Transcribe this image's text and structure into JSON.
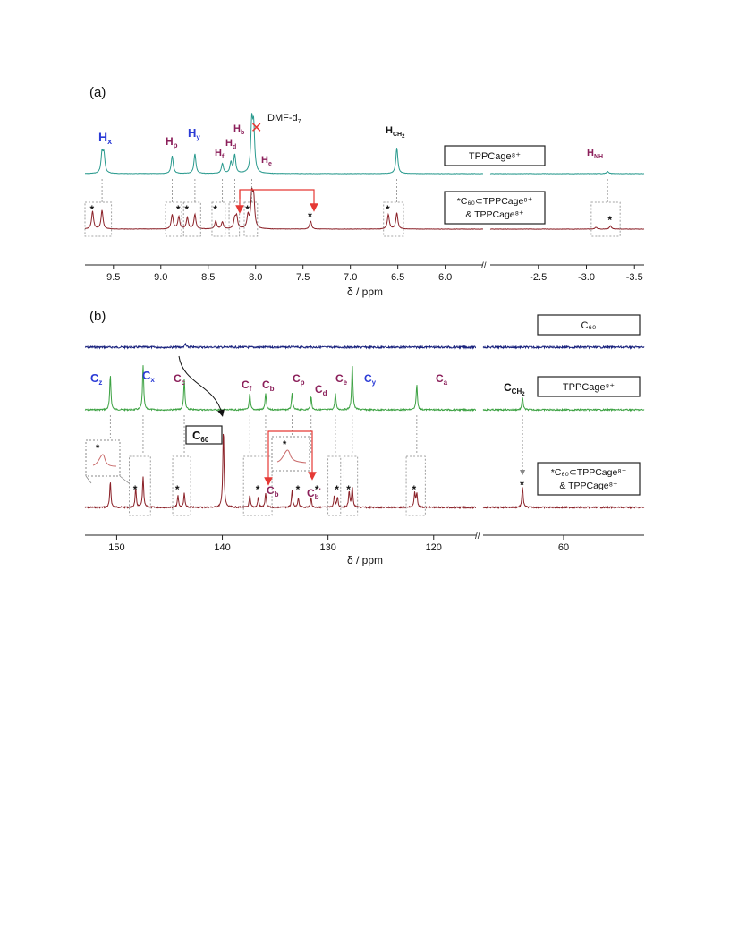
{
  "chart_data": [
    {
      "panel_label": "(a)",
      "type": "line",
      "xlabel": "δ / ppm",
      "x_axis_segments": [
        {
          "range": [
            9.8,
            5.6
          ],
          "ticks": [
            "9.5",
            "9.0",
            "8.5",
            "8.0",
            "7.5",
            "7.0",
            "6.5",
            "6.0"
          ],
          "tick_values": [
            9.5,
            9.0,
            8.5,
            8.0,
            7.5,
            7.0,
            6.5,
            6.0
          ]
        },
        {
          "range": [
            -2.0,
            -3.6
          ],
          "ticks": [
            "-2.5",
            "-3.0",
            "-3.5"
          ],
          "tick_values": [
            -2.5,
            -3.0,
            -3.5
          ]
        }
      ],
      "series": [
        {
          "legend": "TPPCage⁸⁺",
          "color": "#2a9a8e",
          "peaks": [
            {
              "x": 9.62,
              "h": 0.55
            },
            {
              "x": 9.6,
              "h": 0.5
            },
            {
              "x": 8.88,
              "h": 0.5
            },
            {
              "x": 8.64,
              "h": 0.55
            },
            {
              "x": 8.35,
              "h": 0.28
            },
            {
              "x": 8.26,
              "h": 0.3
            },
            {
              "x": 8.22,
              "h": 0.52
            },
            {
              "x": 8.04,
              "h": 1.35
            },
            {
              "x": 8.02,
              "h": 1.2
            },
            {
              "x": 6.51,
              "h": 0.72
            },
            {
              "x": -3.22,
              "h": 0.06
            }
          ]
        },
        {
          "legend_lines": [
            "*C₆₀⊂TPPCage⁸⁺",
            "& TPPCage⁸⁺"
          ],
          "color": "#8b2128",
          "peaks": [
            {
              "x": 9.72,
              "h": 0.55
            },
            {
              "x": 9.62,
              "h": 0.58
            },
            {
              "x": 8.88,
              "h": 0.45
            },
            {
              "x": 8.81,
              "h": 0.38
            },
            {
              "x": 8.72,
              "h": 0.35
            },
            {
              "x": 8.64,
              "h": 0.45
            },
            {
              "x": 8.42,
              "h": 0.25
            },
            {
              "x": 8.35,
              "h": 0.22
            },
            {
              "x": 8.22,
              "h": 0.3
            },
            {
              "x": 8.2,
              "h": 0.38
            },
            {
              "x": 8.08,
              "h": 0.4
            },
            {
              "x": 8.04,
              "h": 1.0
            },
            {
              "x": 8.02,
              "h": 0.9
            },
            {
              "x": 7.42,
              "h": 0.25
            },
            {
              "x": 6.6,
              "h": 0.45
            },
            {
              "x": 6.51,
              "h": 0.5
            },
            {
              "x": -3.1,
              "h": 0.06
            },
            {
              "x": -3.25,
              "h": 0.1
            }
          ],
          "starred": [
            9.72,
            8.81,
            8.72,
            8.42,
            8.08,
            7.42,
            6.6,
            -3.25
          ]
        }
      ],
      "annotations": [
        {
          "label": "Hx",
          "x": 9.62,
          "color": "#2b3bd6"
        },
        {
          "label": "Hp",
          "x": 8.88,
          "color": "#8b1f5a"
        },
        {
          "label": "Hy",
          "x": 8.64,
          "color": "#2b3bd6"
        },
        {
          "label": "Hf",
          "x": 8.35,
          "color": "#8b1f5a"
        },
        {
          "label": "Hd",
          "x": 8.26,
          "color": "#8b1f5a"
        },
        {
          "label": "Hb",
          "x": 8.22,
          "color": "#8b1f5a"
        },
        {
          "label": "He",
          "x": 7.95,
          "color": "#8b1f5a"
        },
        {
          "label": "HCH2",
          "x": 6.51,
          "color": "#111111"
        },
        {
          "label": "HNH",
          "x": -3.22,
          "color": "#8b1f5a"
        },
        {
          "label": "DMF-d7",
          "x": 8.03,
          "color": "#111111"
        }
      ]
    },
    {
      "panel_label": "(b)",
      "type": "line",
      "xlabel": "δ / ppm",
      "x_axis_segments": [
        {
          "range": [
            153,
            116
          ],
          "ticks": [
            "150",
            "140",
            "130",
            "120"
          ],
          "tick_values": [
            150,
            140,
            130,
            120
          ]
        },
        {
          "range": [
            70,
            50
          ],
          "ticks": [
            "60"
          ],
          "tick_values": [
            60
          ]
        }
      ],
      "series": [
        {
          "legend": "C₆₀",
          "color": "#1a237e",
          "peaks": [
            {
              "x": 143.5,
              "h": 0.1
            }
          ]
        },
        {
          "legend": "TPPCage⁸⁺",
          "color": "#3da243",
          "peaks": [
            {
              "x": 150.6,
              "h": 0.75
            },
            {
              "x": 147.5,
              "h": 0.95
            },
            {
              "x": 143.6,
              "h": 0.65
            },
            {
              "x": 137.4,
              "h": 0.35
            },
            {
              "x": 135.9,
              "h": 0.35
            },
            {
              "x": 133.4,
              "h": 0.35
            },
            {
              "x": 131.6,
              "h": 0.28
            },
            {
              "x": 129.3,
              "h": 0.35
            },
            {
              "x": 127.7,
              "h": 1.0
            },
            {
              "x": 121.6,
              "h": 0.55
            },
            {
              "x": 65.1,
              "h": 0.28
            }
          ]
        },
        {
          "legend_lines": [
            "*C₆₀⊂TPPCage⁸⁺",
            "& TPPCage⁸⁺"
          ],
          "color": "#8b2128",
          "peaks": [
            {
              "x": 150.6,
              "h": 0.55
            },
            {
              "x": 148.2,
              "h": 0.4
            },
            {
              "x": 147.5,
              "h": 0.65
            },
            {
              "x": 144.2,
              "h": 0.25
            },
            {
              "x": 143.6,
              "h": 0.3
            },
            {
              "x": 139.9,
              "h": 1.7
            },
            {
              "x": 137.4,
              "h": 0.25
            },
            {
              "x": 136.6,
              "h": 0.22
            },
            {
              "x": 135.9,
              "h": 0.3
            },
            {
              "x": 133.4,
              "h": 0.35
            },
            {
              "x": 132.8,
              "h": 0.2
            },
            {
              "x": 131.6,
              "h": 0.2
            },
            {
              "x": 129.4,
              "h": 0.25
            },
            {
              "x": 129.1,
              "h": 0.22
            },
            {
              "x": 128.0,
              "h": 0.35
            },
            {
              "x": 127.7,
              "h": 0.45
            },
            {
              "x": 121.8,
              "h": 0.3
            },
            {
              "x": 121.6,
              "h": 0.3
            },
            {
              "x": 65.1,
              "h": 0.45
            }
          ],
          "starred": [
            148.2,
            144.2,
            136.6,
            132.8,
            131.0,
            129.1,
            128.0,
            121.8,
            65.1
          ]
        }
      ],
      "annotations": [
        {
          "label": "Cz",
          "x": 150.6,
          "color": "#2b3bd6"
        },
        {
          "label": "Cx",
          "x": 147.5,
          "color": "#2b3bd6"
        },
        {
          "label": "Cc",
          "x": 143.6,
          "color": "#8b1f5a"
        },
        {
          "label": "Cf",
          "x": 137.4,
          "color": "#8b1f5a"
        },
        {
          "label": "Cb",
          "x": 135.9,
          "color": "#8b1f5a"
        },
        {
          "label": "Cp",
          "x": 133.4,
          "color": "#8b1f5a"
        },
        {
          "label": "Cd",
          "x": 131.6,
          "color": "#8b1f5a"
        },
        {
          "label": "Ce",
          "x": 129.3,
          "color": "#8b1f5a"
        },
        {
          "label": "Cy",
          "x": 127.7,
          "color": "#2b3bd6"
        },
        {
          "label": "Ca",
          "x": 121.6,
          "color": "#8b1f5a"
        },
        {
          "label": "CCH2",
          "x": 65.1,
          "color": "#111111"
        },
        {
          "label": "C60",
          "x": 139.9,
          "color": "#111111"
        },
        {
          "label": "Cb",
          "x": 135.9,
          "color": "#8b1f5a"
        },
        {
          "label": "Cb'",
          "x": 131.5,
          "color": "#8b1f5a"
        }
      ]
    }
  ],
  "labels": {
    "panel_a": "(a)",
    "panel_b": "(b)",
    "xlabel_a": "δ / ppm",
    "xlabel_b": "δ / ppm",
    "legend_tpp_a": "TPPCage⁸⁺",
    "legend_complex_a_1": "*C₆₀⊂TPPCage⁸⁺",
    "legend_complex_a_2": "& TPPCage⁸⁺",
    "legend_c60_b": "C₆₀",
    "legend_tpp_b": "TPPCage⁸⁺",
    "legend_complex_b_1": "*C₆₀⊂TPPCage⁸⁺",
    "legend_complex_b_2": "& TPPCage⁸⁺",
    "dmf": "DMF-d",
    "dmf_sub": "7",
    "c60_box": "C",
    "c60_box_sub": "60"
  }
}
